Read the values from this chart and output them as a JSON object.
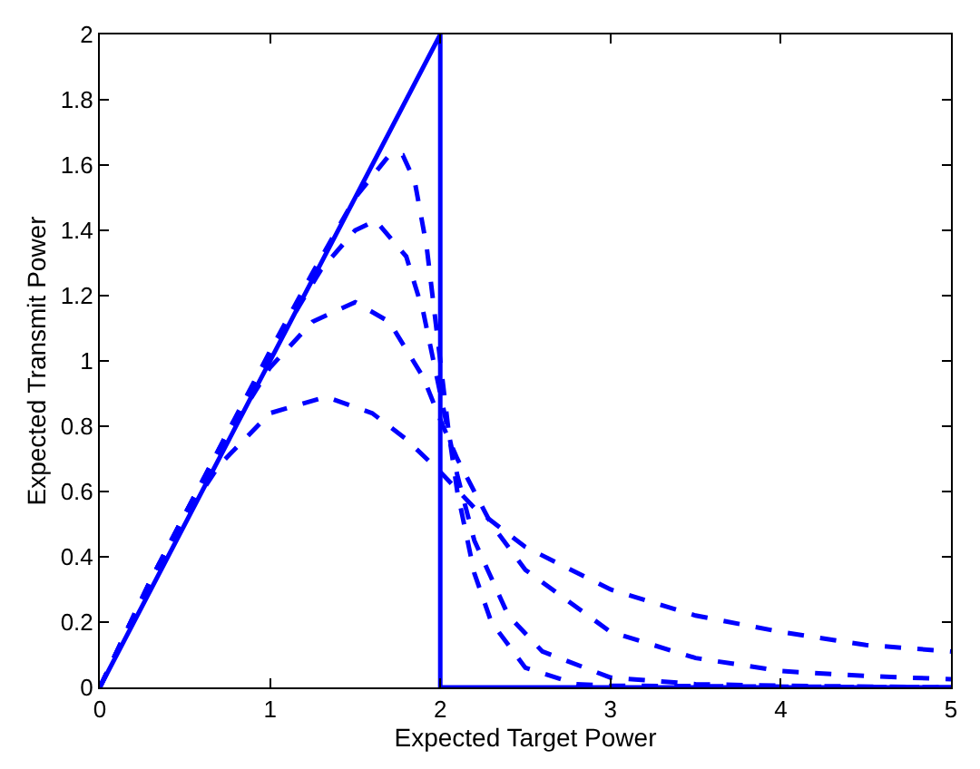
{
  "chart_data": {
    "type": "line",
    "xlabel": "Expected Target Power",
    "ylabel": "Expected Transmit Power",
    "xlim": [
      0,
      5
    ],
    "ylim": [
      0,
      2
    ],
    "xticks": [
      0,
      1,
      2,
      3,
      4,
      5
    ],
    "yticks": [
      0,
      0.2,
      0.4,
      0.6,
      0.8,
      1,
      1.2,
      1.4,
      1.6,
      1.8,
      2
    ],
    "marker": "none",
    "series": [
      {
        "color": "#0000ff",
        "line_style": "solid",
        "x": [
          0,
          2,
          2,
          5
        ],
        "values": [
          0,
          2,
          0,
          0
        ]
      },
      {
        "color": "#0000ff",
        "line_style": "dashed",
        "x": [
          0,
          0.3,
          0.5,
          0.7,
          1.0,
          1.33,
          1.6,
          1.8,
          2.0,
          2.2,
          2.5,
          3,
          3.5,
          4,
          4.5,
          5
        ],
        "values": [
          0,
          0.32,
          0.52,
          0.68,
          0.84,
          0.89,
          0.84,
          0.76,
          0.66,
          0.55,
          0.43,
          0.3,
          0.22,
          0.17,
          0.13,
          0.11
        ]
      },
      {
        "color": "#0000ff",
        "line_style": "dashed",
        "x": [
          0,
          0.3,
          0.5,
          0.75,
          1.0,
          1.25,
          1.5,
          1.7,
          1.9,
          2.0,
          2.1,
          2.3,
          2.5,
          3,
          3.5,
          4,
          4.5,
          5
        ],
        "values": [
          0,
          0.33,
          0.53,
          0.77,
          0.98,
          1.12,
          1.18,
          1.12,
          0.95,
          0.82,
          0.7,
          0.5,
          0.36,
          0.17,
          0.09,
          0.05,
          0.035,
          0.025
        ]
      },
      {
        "color": "#0000ff",
        "line_style": "dashed",
        "x": [
          0,
          0.3,
          0.5,
          0.75,
          1.0,
          1.3,
          1.5,
          1.62,
          1.8,
          1.9,
          2.0,
          2.1,
          2.2,
          2.4,
          2.6,
          3,
          3.5,
          4,
          5
        ],
        "values": [
          0,
          0.33,
          0.53,
          0.78,
          1.02,
          1.28,
          1.4,
          1.43,
          1.32,
          1.15,
          0.9,
          0.65,
          0.45,
          0.22,
          0.11,
          0.03,
          0.01,
          0.005,
          0
        ]
      },
      {
        "color": "#0000ff",
        "line_style": "dashed",
        "x": [
          0,
          0.3,
          0.5,
          0.75,
          1.0,
          1.25,
          1.5,
          1.7,
          1.78,
          1.85,
          1.92,
          2.0,
          2.05,
          2.1,
          2.2,
          2.3,
          2.5,
          2.8,
          3,
          5
        ],
        "values": [
          0,
          0.33,
          0.53,
          0.78,
          1.03,
          1.27,
          1.5,
          1.63,
          1.63,
          1.55,
          1.35,
          1.0,
          0.78,
          0.6,
          0.35,
          0.2,
          0.06,
          0.01,
          0.005,
          0
        ]
      }
    ]
  }
}
